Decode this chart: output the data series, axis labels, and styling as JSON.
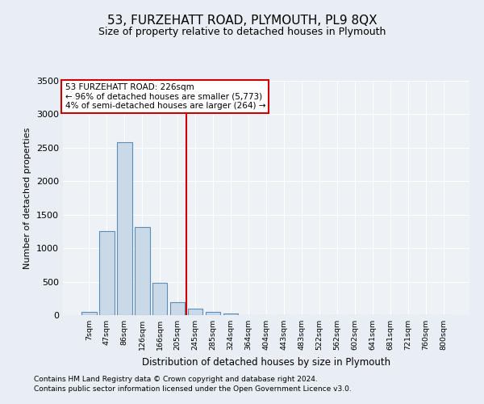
{
  "title": "53, FURZEHATT ROAD, PLYMOUTH, PL9 8QX",
  "subtitle": "Size of property relative to detached houses in Plymouth",
  "xlabel": "Distribution of detached houses by size in Plymouth",
  "ylabel": "Number of detached properties",
  "categories": [
    "7sqm",
    "47sqm",
    "86sqm",
    "126sqm",
    "166sqm",
    "205sqm",
    "245sqm",
    "285sqm",
    "324sqm",
    "364sqm",
    "404sqm",
    "443sqm",
    "483sqm",
    "522sqm",
    "562sqm",
    "602sqm",
    "641sqm",
    "681sqm",
    "721sqm",
    "760sqm",
    "800sqm"
  ],
  "values": [
    50,
    1250,
    2580,
    1320,
    480,
    190,
    100,
    50,
    30,
    0,
    0,
    0,
    0,
    0,
    0,
    0,
    0,
    0,
    0,
    0,
    0
  ],
  "bar_color": "#c9d9e8",
  "bar_edge_color": "#5b8db8",
  "vline_x": 5.5,
  "vline_color": "#cc0000",
  "ylim": [
    0,
    3500
  ],
  "yticks": [
    0,
    500,
    1000,
    1500,
    2000,
    2500,
    3000,
    3500
  ],
  "annotation_text": "53 FURZEHATT ROAD: 226sqm\n← 96% of detached houses are smaller (5,773)\n4% of semi-detached houses are larger (264) →",
  "annotation_box_color": "#cc0000",
  "footnote1": "Contains HM Land Registry data © Crown copyright and database right 2024.",
  "footnote2": "Contains public sector information licensed under the Open Government Licence v3.0.",
  "bg_color": "#e8eef4",
  "plot_bg_color": "#eef2f7",
  "title_fontsize": 11,
  "subtitle_fontsize": 9
}
